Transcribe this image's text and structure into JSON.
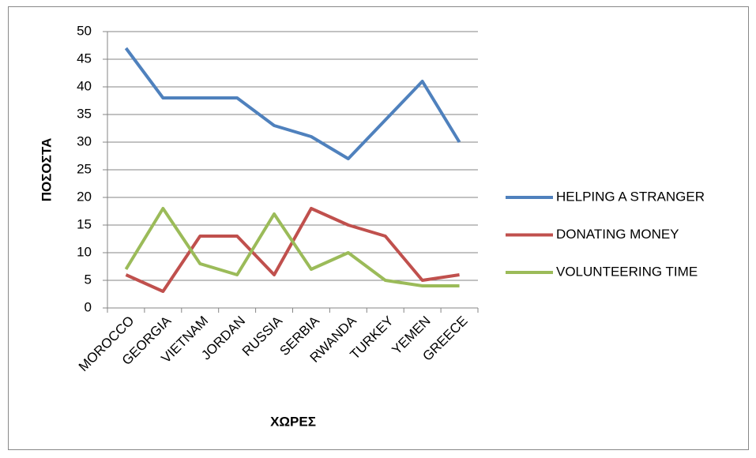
{
  "chart_data": {
    "type": "line",
    "x_label": "ΧΩΡΕΣ",
    "y_label": "ΠΟΣΟΣΤΑ",
    "categories": [
      "MOROCCO",
      "GEORGIA",
      "VIETNAM",
      "JORDAN",
      "RUSSIA",
      "SERBIA",
      "RWANDA",
      "TURKEY",
      "YEMEN",
      "GREECE"
    ],
    "series": [
      {
        "name": "HELPING A STRANGER",
        "color": "#4f81bd",
        "values": [
          47,
          38,
          38,
          38,
          33,
          31,
          27,
          34,
          41,
          30
        ]
      },
      {
        "name": "DONATING MONEY",
        "color": "#c0504d",
        "values": [
          6,
          3,
          13,
          13,
          6,
          18,
          15,
          13,
          5,
          6
        ]
      },
      {
        "name": "VOLUNTEERING TIME",
        "color": "#9bbb59",
        "values": [
          7,
          18,
          8,
          6,
          17,
          7,
          10,
          5,
          4,
          4
        ]
      }
    ],
    "ylim": [
      0,
      50
    ],
    "yticks": [
      0,
      5,
      10,
      15,
      20,
      25,
      30,
      35,
      40,
      45,
      50
    ],
    "grid": true,
    "legend": "right"
  }
}
